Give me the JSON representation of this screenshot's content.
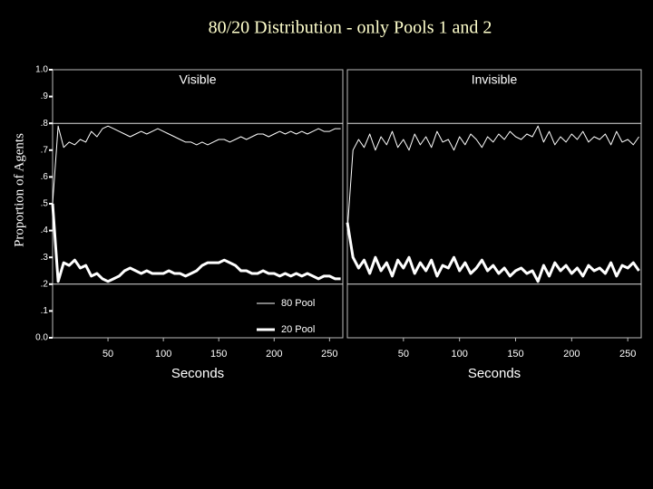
{
  "title": "80/20 Distribution - only Pools 1 and 2",
  "ylabel": "Proportion of Agents",
  "chart_data": [
    {
      "type": "line",
      "title": "Visible",
      "xlabel": "Seconds",
      "x": [
        0,
        5,
        10,
        15,
        20,
        25,
        30,
        35,
        40,
        45,
        50,
        55,
        60,
        65,
        70,
        75,
        80,
        85,
        90,
        95,
        100,
        105,
        110,
        115,
        120,
        125,
        130,
        135,
        140,
        145,
        150,
        155,
        160,
        165,
        170,
        175,
        180,
        185,
        190,
        195,
        200,
        205,
        210,
        215,
        220,
        225,
        230,
        235,
        240,
        245,
        250,
        255,
        260
      ],
      "xlim": [
        0,
        262
      ],
      "xticks": [
        50,
        100,
        150,
        200,
        250
      ],
      "ylim": [
        0,
        1
      ],
      "yticks": [
        {
          "value": 0,
          "label": "0.0"
        },
        {
          "value": 0.1,
          "label": ".1"
        },
        {
          "value": 0.2,
          "label": ".2"
        },
        {
          "value": 0.3,
          "label": ".3"
        },
        {
          "value": 0.4,
          "label": ".4"
        },
        {
          "value": 0.5,
          "label": ".5"
        },
        {
          "value": 0.6,
          "label": ".6"
        },
        {
          "value": 0.7,
          "label": ".7"
        },
        {
          "value": 0.8,
          "label": ".8"
        },
        {
          "value": 0.9,
          "label": ".9"
        },
        {
          "value": 1,
          "label": "1.0"
        }
      ],
      "reference_lines": [
        0.8,
        0.2
      ],
      "series": [
        {
          "name": "80 Pool",
          "color": "#ffffff",
          "width": 1,
          "values": [
            0.5,
            0.79,
            0.71,
            0.73,
            0.72,
            0.74,
            0.73,
            0.77,
            0.75,
            0.78,
            0.79,
            0.78,
            0.77,
            0.76,
            0.75,
            0.76,
            0.77,
            0.76,
            0.77,
            0.78,
            0.77,
            0.76,
            0.75,
            0.74,
            0.73,
            0.73,
            0.72,
            0.73,
            0.72,
            0.73,
            0.74,
            0.74,
            0.73,
            0.74,
            0.75,
            0.74,
            0.75,
            0.76,
            0.76,
            0.75,
            0.76,
            0.77,
            0.76,
            0.77,
            0.76,
            0.77,
            0.76,
            0.77,
            0.78,
            0.77,
            0.77,
            0.78,
            0.78
          ]
        },
        {
          "name": "20 Pool",
          "color": "#ffffff",
          "width": 3,
          "values": [
            0.5,
            0.21,
            0.28,
            0.27,
            0.29,
            0.26,
            0.27,
            0.23,
            0.24,
            0.22,
            0.21,
            0.22,
            0.23,
            0.25,
            0.26,
            0.25,
            0.24,
            0.25,
            0.24,
            0.24,
            0.24,
            0.25,
            0.24,
            0.24,
            0.23,
            0.24,
            0.25,
            0.27,
            0.28,
            0.28,
            0.28,
            0.29,
            0.28,
            0.27,
            0.25,
            0.25,
            0.24,
            0.24,
            0.25,
            0.24,
            0.24,
            0.23,
            0.24,
            0.23,
            0.24,
            0.23,
            0.24,
            0.23,
            0.22,
            0.23,
            0.23,
            0.22,
            0.22
          ]
        }
      ]
    },
    {
      "type": "line",
      "title": "Invisible",
      "xlabel": "Seconds",
      "x": [
        0,
        5,
        10,
        15,
        20,
        25,
        30,
        35,
        40,
        45,
        50,
        55,
        60,
        65,
        70,
        75,
        80,
        85,
        90,
        95,
        100,
        105,
        110,
        115,
        120,
        125,
        130,
        135,
        140,
        145,
        150,
        155,
        160,
        165,
        170,
        175,
        180,
        185,
        190,
        195,
        200,
        205,
        210,
        215,
        220,
        225,
        230,
        235,
        240,
        245,
        250,
        255,
        260
      ],
      "xlim": [
        0,
        262
      ],
      "xticks": [
        50,
        100,
        150,
        200,
        250
      ],
      "ylim": [
        0,
        1
      ],
      "reference_lines": [
        0.8,
        0.2
      ],
      "series": [
        {
          "name": "80 Pool",
          "color": "#ffffff",
          "width": 1,
          "values": [
            0.4,
            0.7,
            0.74,
            0.71,
            0.76,
            0.7,
            0.75,
            0.72,
            0.77,
            0.71,
            0.74,
            0.7,
            0.76,
            0.72,
            0.75,
            0.71,
            0.77,
            0.73,
            0.74,
            0.7,
            0.75,
            0.72,
            0.76,
            0.74,
            0.71,
            0.75,
            0.73,
            0.76,
            0.74,
            0.77,
            0.75,
            0.74,
            0.76,
            0.75,
            0.79,
            0.73,
            0.77,
            0.72,
            0.75,
            0.73,
            0.76,
            0.74,
            0.77,
            0.73,
            0.75,
            0.74,
            0.76,
            0.72,
            0.77,
            0.73,
            0.74,
            0.72,
            0.75
          ]
        },
        {
          "name": "20 Pool",
          "color": "#ffffff",
          "width": 3,
          "values": [
            0.43,
            0.3,
            0.26,
            0.29,
            0.24,
            0.3,
            0.25,
            0.28,
            0.23,
            0.29,
            0.26,
            0.3,
            0.24,
            0.28,
            0.25,
            0.29,
            0.23,
            0.27,
            0.26,
            0.3,
            0.25,
            0.28,
            0.24,
            0.26,
            0.29,
            0.25,
            0.27,
            0.24,
            0.26,
            0.23,
            0.25,
            0.26,
            0.24,
            0.25,
            0.21,
            0.27,
            0.23,
            0.28,
            0.25,
            0.27,
            0.24,
            0.26,
            0.23,
            0.27,
            0.25,
            0.26,
            0.24,
            0.28,
            0.23,
            0.27,
            0.26,
            0.28,
            0.25
          ]
        }
      ]
    }
  ]
}
